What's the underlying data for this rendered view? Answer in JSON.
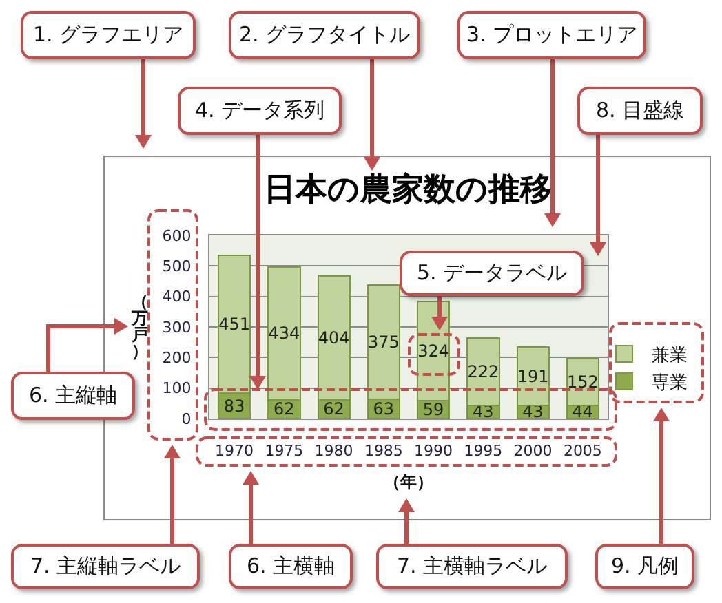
{
  "chart_data": {
    "type": "bar",
    "title": "日本の農家数の推移",
    "xlabel": "（年）",
    "ylabel": "（万戸）",
    "categories": [
      "1970",
      "1975",
      "1980",
      "1985",
      "1990",
      "1995",
      "2000",
      "2005"
    ],
    "stacked": true,
    "series": [
      {
        "name": "専業",
        "color": "#8eab4e",
        "values": [
          83,
          62,
          62,
          63,
          59,
          43,
          43,
          44
        ]
      },
      {
        "name": "兼業",
        "color": "#c0d49b",
        "values": [
          451,
          434,
          404,
          375,
          324,
          222,
          191,
          152
        ]
      }
    ],
    "ylim": [
      0,
      600
    ],
    "yticks": [
      0,
      100,
      200,
      300,
      400,
      500,
      600
    ],
    "grid": "y",
    "legend": "right",
    "data_labels": true,
    "annotations": [
      "1. グラフエリア",
      "2. グラフタイトル",
      "3. プロットエリア",
      "4. データ系列",
      "8. 目盛線",
      "5. データラベル",
      "6. 主縦軸",
      "7. 主縦軸ラベル",
      "6. 主横軸",
      "7. 主横軸ラベル",
      "9. 凡例"
    ]
  }
}
